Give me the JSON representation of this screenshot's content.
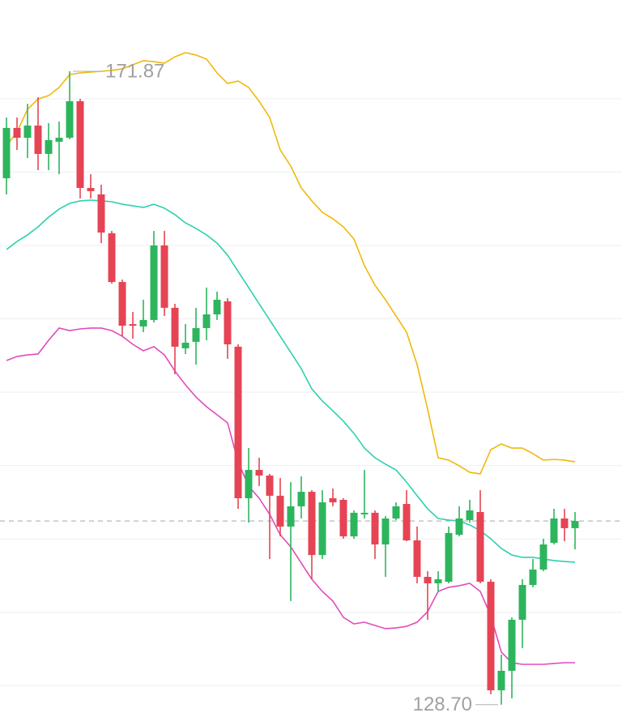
{
  "chart_data": {
    "type": "candlestick",
    "ylim": [
      127.86,
      176.73
    ],
    "yticks": [
      130,
      135,
      140,
      145,
      150,
      155,
      160,
      165,
      170
    ],
    "grid": true,
    "up_color": "#2db55d",
    "down_color": "#e64454",
    "high_label": "171.87",
    "low_label": "128.70",
    "open": [
      164.58,
      168.01,
      167.34,
      168.17,
      166.24,
      167.07,
      167.34,
      169.83,
      163.92,
      163.48,
      160.83,
      157.51,
      154.64,
      154.48,
      154.92,
      160.0,
      155.75,
      152.99,
      153.43,
      154.37,
      155.3,
      156.19,
      153.1,
      142.77,
      144.7,
      144.32,
      142.94,
      140.84,
      142.22,
      143.21,
      138.9,
      142.77,
      142.66,
      140.17,
      141.67,
      141.78,
      139.62,
      141.39,
      142.38,
      139.9,
      137.41,
      136.97,
      137.08,
      140.28,
      141.28,
      141.83,
      137.08,
      129.68,
      131.01,
      134.49,
      136.86,
      137.91,
      139.73,
      141.39,
      140.73
    ],
    "high": [
      168.72,
      168.72,
      169.66,
      170.1,
      168.34,
      168.45,
      171.87,
      169.99,
      164.86,
      164.14,
      160.99,
      157.68,
      155.47,
      156.3,
      160.99,
      160.99,
      156.02,
      154.64,
      155.75,
      157.13,
      156.85,
      156.41,
      153.26,
      146.19,
      145.53,
      144.43,
      144.15,
      143.87,
      144.26,
      143.32,
      143.32,
      143.43,
      142.77,
      141.94,
      144.7,
      141.94,
      141.56,
      142.49,
      143.32,
      140.84,
      137.8,
      137.8,
      140.84,
      142.22,
      142.66,
      143.32,
      137.25,
      132.11,
      134.65,
      137.25,
      138.63,
      140.01,
      142.05,
      142.05,
      141.83
    ],
    "low": [
      163.48,
      166.51,
      165.96,
      165.13,
      165.13,
      164.86,
      167.23,
      163.2,
      163.2,
      160.16,
      157.4,
      153.81,
      153.65,
      154.09,
      154.75,
      155.19,
      151.22,
      152.6,
      151.88,
      153.54,
      154.92,
      152.27,
      142.05,
      141.11,
      143.6,
      138.63,
      140.17,
      135.76,
      141.39,
      137.25,
      138.63,
      142.22,
      140.01,
      140.01,
      141.39,
      138.63,
      137.41,
      141.28,
      139.84,
      136.97,
      134.49,
      136.42,
      136.97,
      140.17,
      141.11,
      136.97,
      129.41,
      128.7,
      129.13,
      132.55,
      136.7,
      137.8,
      139.62,
      139.84,
      139.29
    ],
    "close": [
      168.01,
      167.34,
      168.17,
      166.24,
      167.18,
      167.34,
      169.83,
      163.92,
      163.7,
      160.88,
      157.51,
      154.53,
      154.53,
      154.92,
      160.0,
      155.75,
      153.1,
      153.37,
      154.37,
      155.3,
      156.3,
      153.26,
      142.77,
      144.7,
      144.32,
      142.94,
      140.84,
      142.22,
      143.21,
      138.9,
      142.49,
      142.49,
      140.17,
      141.78,
      141.78,
      139.62,
      141.39,
      142.22,
      139.9,
      137.41,
      136.97,
      137.25,
      140.4,
      141.39,
      141.94,
      137.08,
      129.68,
      131.01,
      134.49,
      136.86,
      137.91,
      139.62,
      141.39,
      140.73,
      141.22
    ],
    "lines": [
      {
        "color": "#f0b90b",
        "values": [
          166.79,
          167.73,
          169.28,
          169.99,
          170.21,
          170.77,
          171.65,
          171.76,
          171.82,
          171.87,
          171.93,
          172.04,
          172.31,
          172.59,
          172.53,
          172.42,
          172.86,
          173.14,
          172.98,
          172.7,
          171.76,
          171.04,
          171.21,
          170.77,
          169.83,
          168.72,
          166.51,
          165.41,
          163.92,
          163.04,
          162.26,
          161.82,
          161.27,
          160.44,
          158.62,
          157.29,
          156.3,
          155.19,
          154.09,
          151.88,
          148.84,
          145.53,
          145.37,
          144.98,
          144.54,
          144.43,
          146.08,
          146.47,
          146.19,
          146.19,
          145.81,
          145.37,
          145.42,
          145.37,
          145.25
        ]
      },
      {
        "color": "#2ed0b0",
        "values": [
          159.72,
          160.27,
          160.72,
          161.27,
          161.93,
          162.48,
          162.87,
          163.04,
          163.09,
          163.04,
          162.98,
          162.81,
          162.7,
          162.59,
          162.81,
          162.54,
          162.1,
          161.54,
          161.16,
          160.72,
          160.16,
          159.34,
          158.23,
          157.13,
          156.02,
          154.92,
          153.81,
          152.71,
          151.6,
          150.22,
          149.4,
          148.73,
          148.02,
          147.19,
          146.19,
          145.53,
          145.09,
          144.7,
          143.87,
          142.94,
          142.05,
          141.39,
          141.28,
          141.22,
          140.95,
          140.56,
          140.01,
          139.35,
          138.9,
          138.74,
          138.74,
          138.63,
          138.52,
          138.46,
          138.41
        ]
      },
      {
        "color": "#e14bbd",
        "values": [
          152.16,
          152.43,
          152.54,
          152.6,
          153.54,
          154.37,
          154.2,
          154.31,
          154.37,
          154.37,
          154.2,
          153.81,
          153.26,
          152.82,
          153.1,
          152.54,
          151.44,
          150.5,
          149.67,
          149.01,
          148.46,
          147.91,
          145.25,
          143.6,
          142.77,
          141.67,
          140.28,
          139.46,
          138.35,
          137.25,
          136.42,
          135.76,
          134.65,
          134.21,
          134.32,
          134.1,
          133.88,
          133.93,
          134.04,
          134.32,
          135.04,
          136.42,
          136.7,
          136.81,
          136.97,
          136.42,
          134.76,
          132.28,
          131.56,
          131.45,
          131.45,
          131.45,
          131.51,
          131.56,
          131.56
        ]
      }
    ]
  }
}
